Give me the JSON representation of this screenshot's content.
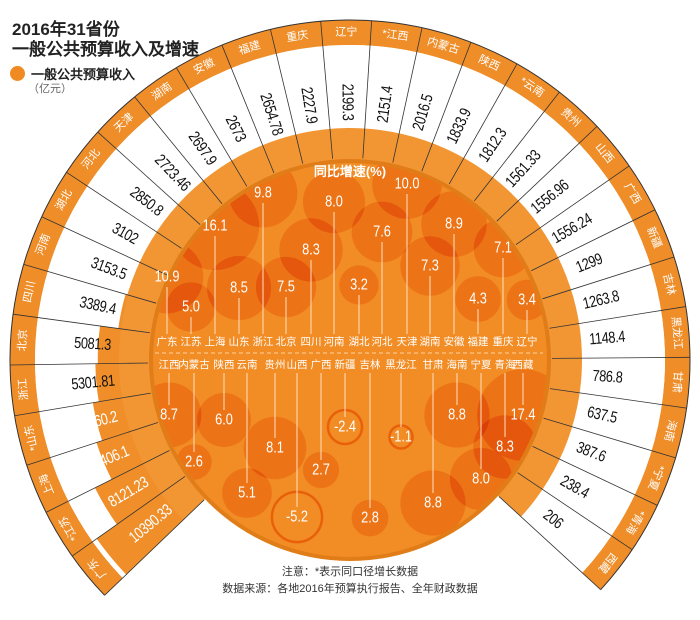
{
  "title": {
    "line1": "2016年31省份",
    "line2": "一般公共预算收入及增速"
  },
  "legend": {
    "label": "一般公共预算收入",
    "unit": "（亿元）",
    "color": "#f08a22"
  },
  "notes": {
    "note": "注意：*表示同口径增长数据",
    "source": "数据来源：各地2016年预算执行报告、全年财政数据"
  },
  "colors": {
    "orange": "#f08a22",
    "bubble": "#e8600a",
    "overlap": "#e03a00",
    "divider": "#333333"
  },
  "chart_data": {
    "type": "radial-bar-bubble",
    "title": "2016年31省份 一般公共预算收入及增速",
    "revenue_label": "一般公共预算收入",
    "revenue_unit": "（亿元）",
    "growth_label": "同比增速(%)",
    "provinces": [
      {
        "name": "广东",
        "ring_label": "广东",
        "revenue": "10390.33",
        "growth": "10.9"
      },
      {
        "name": "江苏",
        "ring_label": "*江苏",
        "revenue": "8121.23",
        "growth": "5.0"
      },
      {
        "name": "上海",
        "ring_label": "上海",
        "revenue": "6406.1",
        "growth": "16.1"
      },
      {
        "name": "山东",
        "ring_label": "*山东",
        "revenue": "5860.2",
        "growth": "8.5"
      },
      {
        "name": "浙江",
        "ring_label": "浙江",
        "revenue": "5301.81",
        "growth": "9.8"
      },
      {
        "name": "北京",
        "ring_label": "北京",
        "revenue": "5081.3",
        "growth": "7.5"
      },
      {
        "name": "四川",
        "ring_label": "四川",
        "revenue": "3389.4",
        "growth": "8.3"
      },
      {
        "name": "河南",
        "ring_label": "河南",
        "revenue": "3153.5",
        "growth": "8.0"
      },
      {
        "name": "湖北",
        "ring_label": "湖北",
        "revenue": "3102",
        "growth": "3.2"
      },
      {
        "name": "河北",
        "ring_label": "河北",
        "revenue": "2850.8",
        "growth": "7.6"
      },
      {
        "name": "天津",
        "ring_label": "天津",
        "revenue": "2723.46",
        "growth": "10.0"
      },
      {
        "name": "湖南",
        "ring_label": "湖南",
        "revenue": "2697.9",
        "growth": "7.3"
      },
      {
        "name": "安徽",
        "ring_label": "安徽",
        "revenue": "2673",
        "growth": "8.9"
      },
      {
        "name": "福建",
        "ring_label": "福建",
        "revenue": "2654.78",
        "growth": "4.3"
      },
      {
        "name": "重庆",
        "ring_label": "重庆",
        "revenue": "2227.9",
        "growth": "7.1"
      },
      {
        "name": "辽宁",
        "ring_label": "辽宁",
        "revenue": "2199.3",
        "growth": "3.4"
      },
      {
        "name": "江西",
        "ring_label": "*江西",
        "revenue": "2151.4",
        "growth": "8.7"
      },
      {
        "name": "内蒙古",
        "ring_label": "内蒙古",
        "revenue": "2016.5",
        "growth": "2.6"
      },
      {
        "name": "陕西",
        "ring_label": "陕西",
        "revenue": "1833.9",
        "growth": "6.0"
      },
      {
        "name": "云南",
        "ring_label": "*云南",
        "revenue": "1812.3",
        "growth": "5.1"
      },
      {
        "name": "贵州",
        "ring_label": "贵州",
        "revenue": "1561.33",
        "growth": "8.1"
      },
      {
        "name": "山西",
        "ring_label": "山西",
        "revenue": "1556.96",
        "growth": "-5.2"
      },
      {
        "name": "广西",
        "ring_label": "广西",
        "revenue": "1556.24",
        "growth": "2.7"
      },
      {
        "name": "新疆",
        "ring_label": "新疆",
        "revenue": "1299",
        "growth": "-2.4"
      },
      {
        "name": "吉林",
        "ring_label": "吉林",
        "revenue": "1263.8",
        "growth": "2.8"
      },
      {
        "name": "黑龙江",
        "ring_label": "黑龙江",
        "revenue": "1148.4",
        "growth": "-1.1"
      },
      {
        "name": "甘肃",
        "ring_label": "甘肃",
        "revenue": "786.8",
        "growth": "8.8"
      },
      {
        "name": "海南",
        "ring_label": "海南",
        "revenue": "637.5",
        "growth": "8.8"
      },
      {
        "name": "宁夏",
        "ring_label": "*宁夏",
        "revenue": "387.6",
        "growth": "8.0"
      },
      {
        "name": "青海",
        "ring_label": "*青海",
        "revenue": "238.4",
        "growth": "8.3"
      },
      {
        "name": "西藏",
        "ring_label": "西藏",
        "revenue": "206",
        "growth": "17.4"
      }
    ]
  }
}
